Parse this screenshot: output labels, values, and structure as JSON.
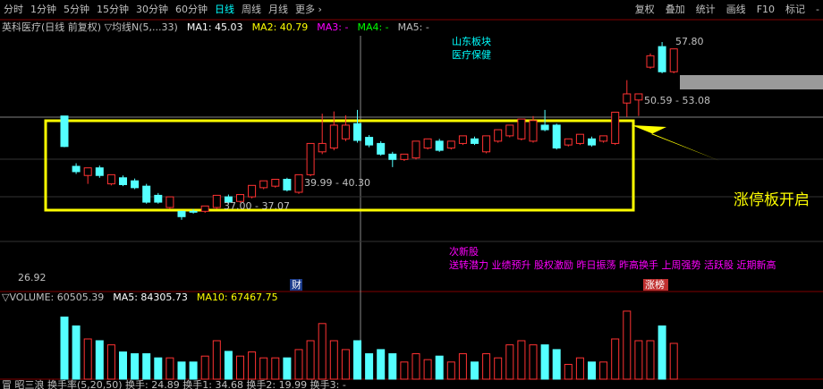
{
  "toolbar": {
    "periods": [
      "分时",
      "1分钟",
      "5分钟",
      "15分钟",
      "30分钟",
      "60分钟",
      "日线",
      "周线",
      "月线",
      "更多 ›"
    ],
    "active_index": 6,
    "right": [
      "复权",
      "叠加",
      "统计",
      "画线",
      "F10",
      "标记",
      "-"
    ]
  },
  "header": {
    "stock": "英科医疗(日线 前复权) ▽均线N(5,...33)",
    "ma": [
      {
        "text": "MA1: 45.03",
        "color": "#ffffff"
      },
      {
        "text": "MA2: 40.79",
        "color": "#ffff00"
      },
      {
        "text": "MA3: -",
        "color": "#ff00ff"
      },
      {
        "text": "MA4: -",
        "color": "#00ff00"
      },
      {
        "text": "MA5: -",
        "color": "#c0c0c0"
      }
    ]
  },
  "annotations": {
    "sector": [
      "山东板块",
      "医疗保健"
    ],
    "limit_up": "涨停板开启",
    "concept_title": "次新股",
    "concepts": "送转潜力 业绩预升 股权激励 昨日振荡 昨高换手 上周强势 活跃股 近期新高",
    "price_labels": [
      "57.80",
      "50.59 - 53.08",
      "39.99 - 40.30",
      "37.00 - 37.07",
      "26.92"
    ],
    "markers": [
      "财",
      "涨榜"
    ]
  },
  "chart_data": [
    {
      "type": "candlestick",
      "up_color": "#ff3232",
      "down_color": "#54ffff",
      "ylim": [
        25.2,
        61.2
      ],
      "open": [
        48.1,
        41.5,
        40.3,
        41.3,
        39.2,
        40.0,
        39.6,
        38.9,
        37.7,
        36.1,
        35.6,
        35.6,
        35.6,
        36.1,
        37.5,
        36.9,
        37.5,
        38.7,
        38.9,
        39.8,
        38.1,
        40.4,
        43.4,
        43.9,
        45.1,
        47.1,
        45.3,
        44.5,
        43.1,
        42.4,
        42.6,
        43.9,
        44.8,
        43.9,
        44.5,
        45.1,
        43.4,
        44.8,
        45.5,
        45.1,
        44.8,
        46.9,
        46.9,
        44.3,
        44.5,
        45.1,
        44.8,
        44.5,
        49.8,
        50.2,
        54.5,
        57.2,
        53.9
      ],
      "high": [
        48.1,
        41.9,
        41.3,
        41.6,
        40.4,
        40.3,
        39.9,
        39.2,
        38.0,
        37.5,
        35.6,
        35.9,
        36.3,
        37.7,
        37.8,
        37.8,
        39.0,
        39.6,
        39.8,
        40.0,
        40.4,
        44.5,
        48.4,
        48.7,
        48.2,
        48.9,
        45.6,
        44.8,
        43.4,
        43.1,
        44.8,
        45.1,
        45.1,
        44.8,
        45.5,
        45.4,
        45.5,
        46.3,
        46.9,
        47.7,
        48.1,
        48.9,
        47.1,
        45.1,
        45.7,
        45.4,
        45.5,
        48.6,
        52.8,
        51.0,
        56.3,
        57.8,
        56.9
      ],
      "low": [
        44.0,
        40.5,
        39.2,
        40.0,
        39.0,
        38.9,
        38.5,
        36.6,
        36.6,
        35.9,
        34.5,
        35.3,
        35.4,
        35.9,
        36.6,
        36.7,
        37.3,
        38.5,
        38.7,
        38.2,
        37.9,
        40.2,
        43.1,
        43.6,
        44.8,
        44.6,
        44.0,
        42.9,
        41.4,
        42.2,
        42.4,
        43.7,
        43.4,
        43.7,
        44.3,
        44.3,
        43.2,
        44.6,
        45.3,
        44.9,
        44.6,
        46.1,
        43.7,
        44.1,
        44.3,
        44.1,
        44.6,
        44.3,
        48.0,
        48.1,
        54.3,
        53.7,
        53.7
      ],
      "close": [
        44.1,
        40.8,
        41.3,
        40.3,
        40.4,
        39.1,
        38.7,
        36.8,
        36.8,
        37.5,
        34.9,
        35.5,
        36.3,
        37.7,
        36.8,
        37.8,
        39.0,
        39.6,
        39.8,
        38.4,
        40.4,
        44.5,
        44.5,
        46.9,
        46.9,
        44.9,
        44.3,
        43.1,
        42.4,
        43.1,
        44.8,
        45.1,
        43.6,
        44.8,
        45.5,
        44.5,
        45.5,
        46.3,
        46.9,
        47.7,
        47.5,
        46.3,
        43.9,
        45.1,
        45.7,
        44.3,
        45.5,
        48.6,
        51.0,
        51.0,
        56.0,
        53.9,
        56.9
      ]
    },
    {
      "type": "bar",
      "title": "▽VOLUME: 60505.39",
      "legend": [
        {
          "text": "MA5: 84305.73",
          "color": "#ffffff"
        },
        {
          "text": "MA10: 67467.75",
          "color": "#ffff00"
        }
      ],
      "ylim": [
        0,
        130000
      ],
      "values": [
        105000,
        90000,
        68000,
        65000,
        58000,
        46000,
        43000,
        43000,
        36000,
        36000,
        29000,
        29000,
        39000,
        65000,
        47000,
        39000,
        46000,
        36000,
        36000,
        36000,
        50000,
        65000,
        94000,
        65000,
        50000,
        65000,
        43000,
        50000,
        43000,
        29000,
        43000,
        33000,
        39000,
        29000,
        43000,
        29000,
        43000,
        36000,
        58000,
        65000,
        58000,
        58000,
        50000,
        25000,
        36000,
        29000,
        29000,
        68000,
        115000,
        65000,
        65000,
        90000,
        60505.39
      ]
    }
  ],
  "footer": "冒 昭三浪 换手率(5,20,50) 换手: 24.89 换手1: 34.68 换手2: 19.99 换手3: -"
}
